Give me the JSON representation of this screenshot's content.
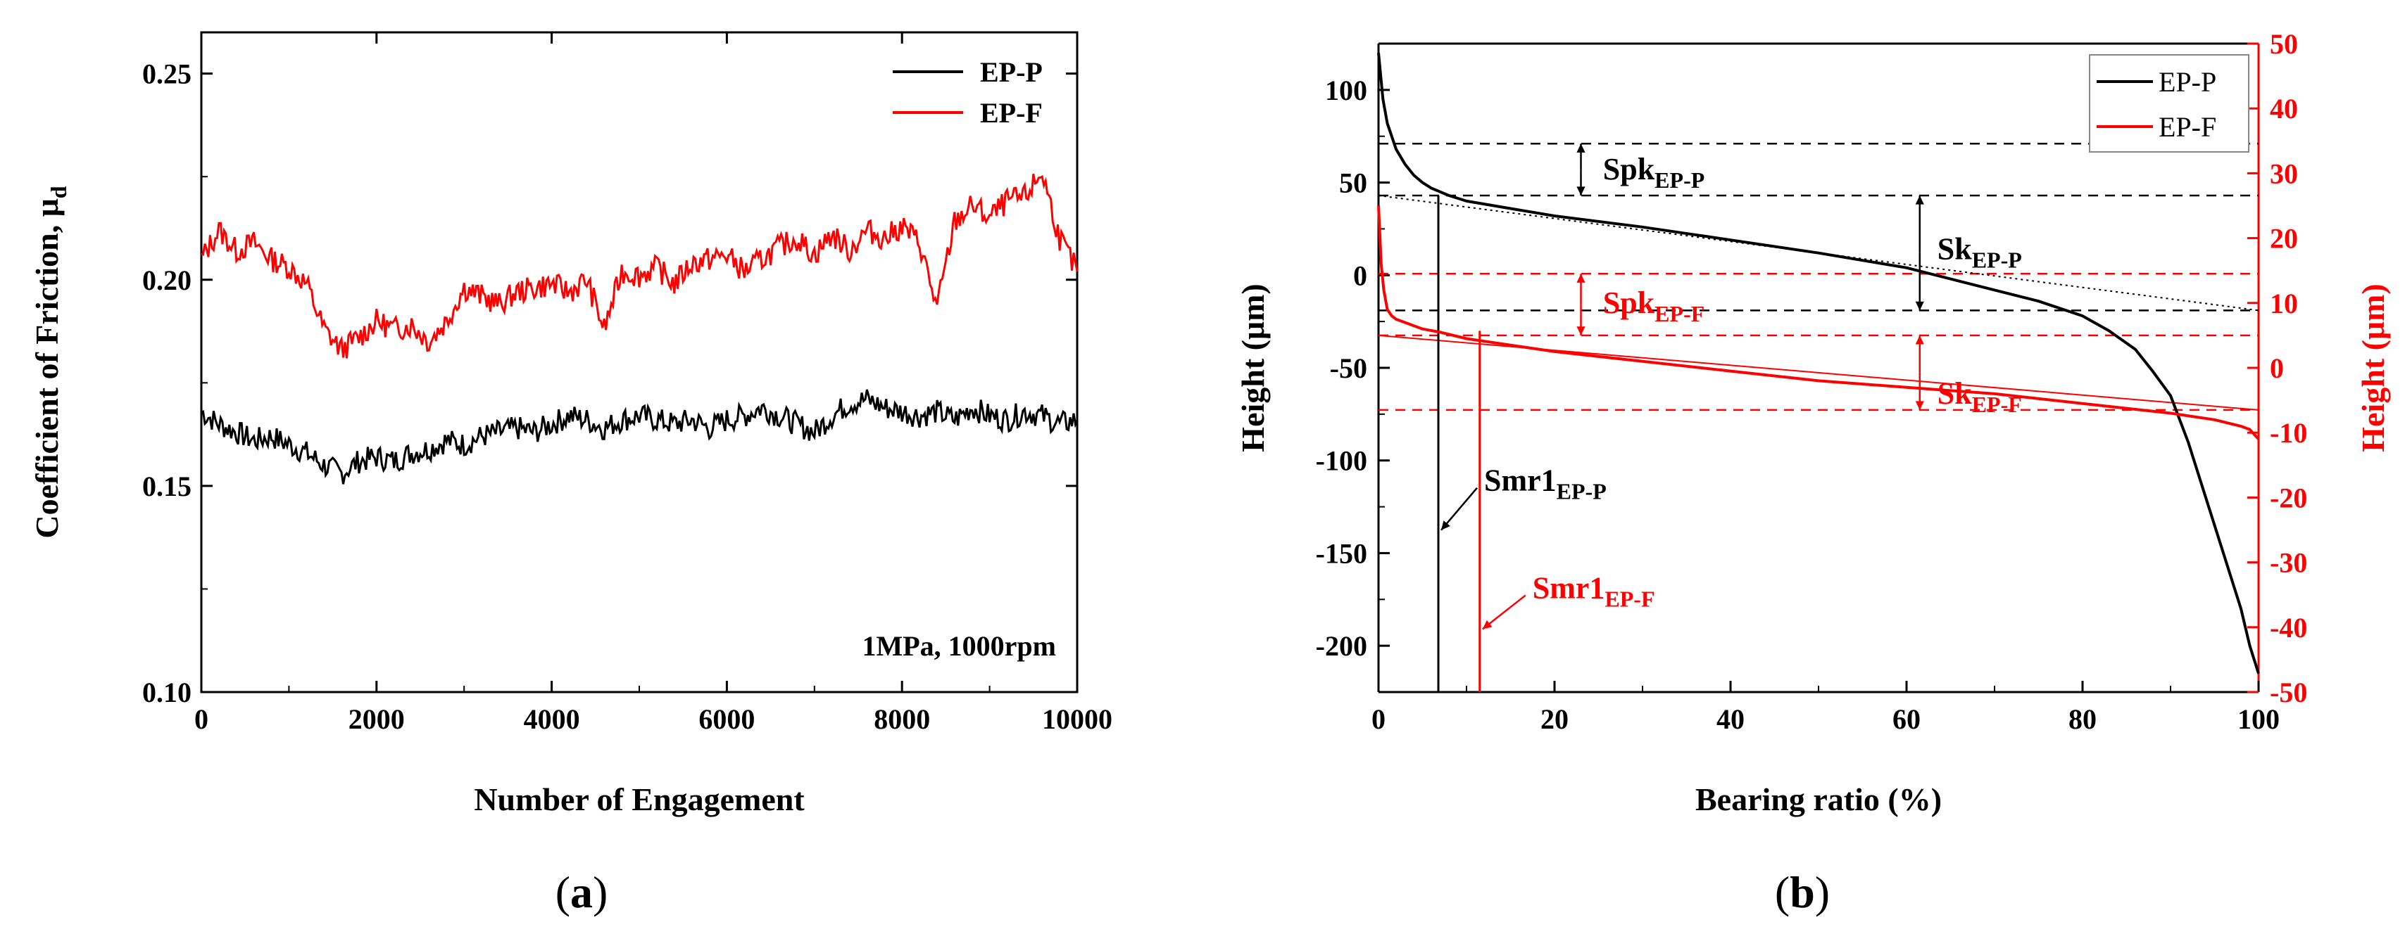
{
  "chart_data": [
    {
      "id": "a",
      "type": "line",
      "panel_label": "a",
      "xlabel": "Number of Engagement",
      "ylabel": "Coefficient of Friction, μ",
      "ylabel_sub": "d",
      "xlim": [
        0,
        10000
      ],
      "ylim": [
        0.1,
        0.26
      ],
      "xticks": [
        0,
        2000,
        4000,
        6000,
        8000,
        10000
      ],
      "xtick_labels": [
        "0",
        "2000",
        "4000",
        "6000",
        "8000",
        "10000"
      ],
      "yticks": [
        0.1,
        0.15,
        0.2,
        0.25
      ],
      "ytick_labels": [
        "0.10",
        "0.15",
        "0.20",
        "0.25"
      ],
      "condition": "1MPa, 1000rpm",
      "legend_position": "top-right",
      "series": [
        {
          "name": "EP-P",
          "color": "#000000",
          "x": [
            0,
            200,
            400,
            600,
            800,
            1000,
            1200,
            1400,
            1600,
            1800,
            2000,
            2200,
            2400,
            2600,
            2800,
            3000,
            3200,
            3400,
            3600,
            3800,
            4000,
            4200,
            4400,
            4600,
            4800,
            5000,
            5200,
            5400,
            5600,
            5800,
            6000,
            6200,
            6400,
            6600,
            6800,
            7000,
            7200,
            7400,
            7600,
            7800,
            8000,
            8200,
            8400,
            8600,
            8800,
            9000,
            9200,
            9400,
            9600,
            9800,
            10000
          ],
          "values": [
            0.168,
            0.165,
            0.163,
            0.161,
            0.162,
            0.16,
            0.158,
            0.155,
            0.153,
            0.156,
            0.157,
            0.156,
            0.158,
            0.159,
            0.161,
            0.16,
            0.162,
            0.163,
            0.164,
            0.163,
            0.165,
            0.167,
            0.166,
            0.164,
            0.166,
            0.167,
            0.166,
            0.165,
            0.166,
            0.164,
            0.166,
            0.167,
            0.169,
            0.167,
            0.165,
            0.163,
            0.167,
            0.17,
            0.171,
            0.169,
            0.168,
            0.167,
            0.168,
            0.166,
            0.169,
            0.167,
            0.166,
            0.168,
            0.167,
            0.165,
            0.166
          ]
        },
        {
          "name": "EP-F",
          "color": "#ff0000",
          "x": [
            0,
            200,
            400,
            600,
            800,
            1000,
            1200,
            1400,
            1600,
            1800,
            2000,
            2200,
            2400,
            2600,
            2800,
            3000,
            3200,
            3400,
            3600,
            3800,
            4000,
            4200,
            4400,
            4600,
            4800,
            5000,
            5200,
            5400,
            5600,
            5800,
            6000,
            6200,
            6400,
            6600,
            6800,
            7000,
            7200,
            7400,
            7600,
            7800,
            8000,
            8200,
            8400,
            8600,
            8800,
            9000,
            9200,
            9400,
            9600,
            9800,
            10000
          ],
          "values": [
            0.205,
            0.212,
            0.207,
            0.209,
            0.205,
            0.203,
            0.199,
            0.188,
            0.183,
            0.186,
            0.19,
            0.188,
            0.189,
            0.185,
            0.19,
            0.198,
            0.196,
            0.194,
            0.197,
            0.198,
            0.199,
            0.197,
            0.2,
            0.188,
            0.202,
            0.201,
            0.203,
            0.199,
            0.204,
            0.205,
            0.206,
            0.202,
            0.205,
            0.208,
            0.21,
            0.206,
            0.211,
            0.207,
            0.212,
            0.21,
            0.213,
            0.209,
            0.193,
            0.214,
            0.218,
            0.215,
            0.219,
            0.22,
            0.226,
            0.21,
            0.202
          ]
        }
      ]
    },
    {
      "id": "b",
      "type": "line",
      "panel_label": "b",
      "xlabel": "Bearing ratio (%)",
      "ylabel_left": "Height (μm)",
      "ylabel_right": "Height (μm)",
      "xlim": [
        0,
        100
      ],
      "ylim_left": [
        -225,
        125
      ],
      "ylim_right": [
        -50,
        50
      ],
      "xticks": [
        0,
        20,
        40,
        60,
        80,
        100
      ],
      "xtick_labels": [
        "0",
        "20",
        "40",
        "60",
        "80",
        "100"
      ],
      "yticks_left": [
        -200,
        -150,
        -100,
        -50,
        0,
        50,
        100
      ],
      "ytick_labels_left": [
        "-200",
        "-150",
        "-100",
        "-50",
        "0",
        "50",
        "100"
      ],
      "yticks_right": [
        -50,
        -40,
        -30,
        -20,
        -10,
        0,
        10,
        20,
        30,
        40,
        50
      ],
      "ytick_labels_right": [
        "-50",
        "-40",
        "-30",
        "-20",
        "-10",
        "0",
        "10",
        "20",
        "30",
        "40",
        "50"
      ],
      "legend_position": "top-right",
      "series": [
        {
          "name": "EP-P",
          "color": "#000000",
          "axis": "left",
          "x": [
            0,
            0.5,
            1,
            2,
            3,
            4,
            5,
            6,
            7,
            8,
            10,
            15,
            20,
            30,
            40,
            50,
            60,
            65,
            70,
            75,
            80,
            83,
            86,
            88,
            90,
            92,
            94,
            96,
            98,
            99,
            100
          ],
          "values": [
            120,
            95,
            82,
            68,
            60,
            54,
            50,
            47,
            45,
            43,
            40,
            36,
            32,
            26,
            19,
            12,
            4,
            -2,
            -8,
            -14,
            -22,
            -30,
            -40,
            -52,
            -65,
            -90,
            -120,
            -150,
            -180,
            -200,
            -215
          ]
        },
        {
          "name": "EP-F",
          "color": "#ff0000",
          "axis": "right",
          "x": [
            0,
            0.3,
            0.6,
            1,
            1.5,
            2,
            3,
            4,
            5,
            7,
            10,
            15,
            20,
            30,
            40,
            50,
            60,
            70,
            80,
            90,
            95,
            98,
            99,
            100
          ],
          "values": [
            25,
            16,
            12,
            9,
            8,
            7.5,
            7,
            6.5,
            6,
            5.5,
            4.5,
            3.5,
            2.5,
            1,
            -0.5,
            -2,
            -3,
            -4,
            -5.5,
            -7,
            -8,
            -9,
            -9.5,
            -11
          ]
        }
      ],
      "reference_lines": [
        {
          "axis": "left",
          "value": 71,
          "color": "#000000",
          "style": "dashed"
        },
        {
          "axis": "left",
          "value": 43,
          "color": "#000000",
          "style": "dashed"
        },
        {
          "axis": "left",
          "value": -19,
          "color": "#000000",
          "style": "dashed"
        },
        {
          "axis": "right",
          "value": 14.5,
          "color": "#ff0000",
          "style": "dashed"
        },
        {
          "axis": "right",
          "value": 5,
          "color": "#ff0000",
          "style": "dashed"
        },
        {
          "axis": "right",
          "value": -6.5,
          "color": "#ff0000",
          "style": "dashed"
        }
      ],
      "tangent_lines": [
        {
          "axis": "left",
          "color": "#000000",
          "style": "dotted",
          "from": [
            0,
            43
          ],
          "to": [
            100,
            -19
          ]
        },
        {
          "axis": "right",
          "color": "#ff0000",
          "style": "thin",
          "from": [
            0,
            5
          ],
          "to": [
            100,
            -6.5
          ]
        }
      ],
      "vertical_markers": [
        {
          "x": 6.8,
          "color": "#000000",
          "axis": "left",
          "from": -225,
          "to": 43
        },
        {
          "x": 11.5,
          "color": "#ff0000",
          "axis": "left",
          "from": -225,
          "to": -30
        }
      ],
      "annotations": [
        {
          "text": "Spk",
          "sub": "EP-P",
          "color": "#000000"
        },
        {
          "text": "Sk",
          "sub": "EP-P",
          "color": "#000000"
        },
        {
          "text": "Spk",
          "sub": "EP-F",
          "color": "#ff0000"
        },
        {
          "text": "Sk",
          "sub": "EP-F",
          "color": "#ff0000"
        },
        {
          "text": "Smr1",
          "sub": "EP-P",
          "color": "#000000"
        },
        {
          "text": "Smr1",
          "sub": "EP-F",
          "color": "#ff0000"
        }
      ]
    }
  ],
  "captions": {
    "a": "(a)",
    "b": "(b)"
  }
}
